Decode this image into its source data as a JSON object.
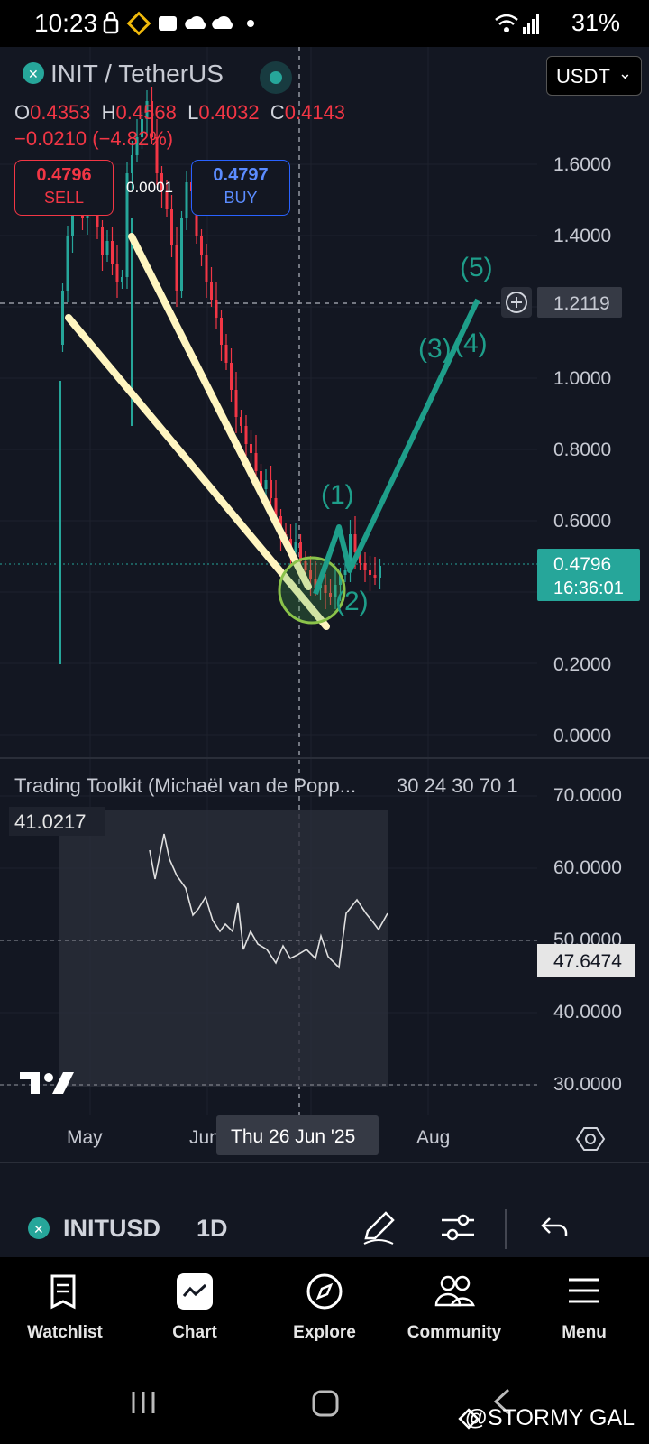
{
  "status_bar": {
    "time": "10:23",
    "battery": "31%"
  },
  "header": {
    "pair": "INIT / TetherUS",
    "currency": "USDT",
    "ohlc": {
      "open_label": "O",
      "open": "0.4353",
      "high_label": "H",
      "high": "0.4568",
      "low_label": "L",
      "low": "0.4032",
      "close_label": "C",
      "close": "0.4143"
    },
    "change": "−0.0210 (−4.82%)",
    "sell": {
      "price": "0.4796",
      "label": "SELL"
    },
    "buy": {
      "price": "0.4797",
      "label": "BUY"
    },
    "spread": "0.0001"
  },
  "chart_data": {
    "type": "candlestick",
    "y_ticks": [
      "1.6000",
      "1.4000",
      "1.2000",
      "1.0000",
      "0.8000",
      "0.6000",
      "0.2000",
      "0.0000"
    ],
    "crosshair_price": "1.2119",
    "last_price": "0.4796",
    "countdown": "16:36:01",
    "x_ticks": [
      "May",
      "Jun",
      "Aug"
    ],
    "crosshair_date": "Thu 26 Jun '25",
    "wave_labels": [
      "(1)",
      "(2)",
      "(3)",
      "(4)",
      "(5)"
    ],
    "line_color_up": "#26a69a",
    "line_color_down": "#f23645",
    "trendline_color": "#fff5c0"
  },
  "indicator": {
    "title": "Trading Toolkit (Michaël van de Popp...",
    "params": "30 24 30 70 1",
    "value": "41.0217",
    "y_ticks": [
      "70.0000",
      "60.0000",
      "50.0000",
      "40.0000",
      "30.0000"
    ],
    "current": "47.6474"
  },
  "toolbar": {
    "symbol": "INITUSD",
    "interval": "1D"
  },
  "nav": [
    {
      "label": "Watchlist",
      "icon": "watchlist-icon"
    },
    {
      "label": "Chart",
      "icon": "chart-icon"
    },
    {
      "label": "Explore",
      "icon": "compass-icon"
    },
    {
      "label": "Community",
      "icon": "community-icon"
    },
    {
      "label": "Menu",
      "icon": "menu-icon"
    }
  ],
  "watermark": "@STORMY GAL"
}
